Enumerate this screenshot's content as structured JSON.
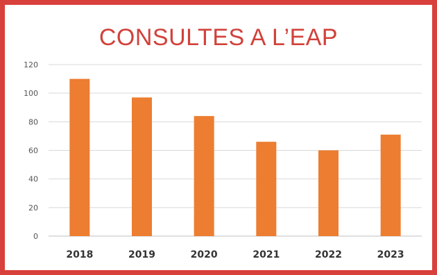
{
  "chart_data": {
    "type": "bar",
    "title": "CONSULTES A L’EAP",
    "categories": [
      "2018",
      "2019",
      "2020",
      "2021",
      "2022",
      "2023"
    ],
    "values": [
      110,
      97,
      84,
      66,
      60,
      71
    ],
    "ylim": [
      0,
      120
    ],
    "yticks": [
      0,
      20,
      40,
      60,
      80,
      100,
      120
    ],
    "grid": true,
    "bar_color": "#ed7d31",
    "frame_color": "#d8403b",
    "title_color": "#d1413a"
  }
}
